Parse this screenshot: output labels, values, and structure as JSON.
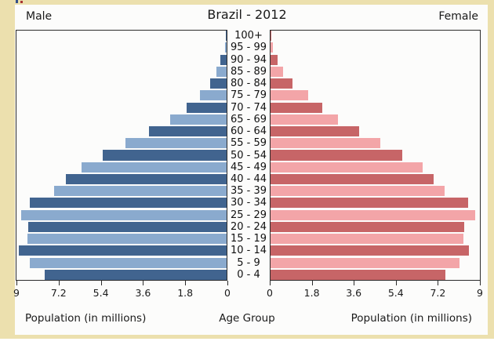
{
  "header": {
    "title": "Brazil - 2012",
    "male_label": "Male",
    "female_label": "Female"
  },
  "footer": {
    "left_caption": "Population (in millions)",
    "center_caption": "Age Group",
    "right_caption": "Population (in millions)"
  },
  "colors": {
    "male_dark": "#41648f",
    "male_light": "#8aaace",
    "female_dark": "#c76567",
    "female_light": "#f3a5a8",
    "frame_beige": "#ece0ae",
    "panel_white": "#fcfcfb",
    "axis": "#2b2b2b"
  },
  "chart_data": {
    "type": "bar",
    "subtype": "population-pyramid",
    "title": "Brazil - 2012",
    "units": "millions of people",
    "categories": [
      "0 - 4",
      "5 - 9",
      "10 - 14",
      "15 - 19",
      "20 - 24",
      "25 - 29",
      "30 - 34",
      "35 - 39",
      "40 - 44",
      "45 - 49",
      "50 - 54",
      "55 - 59",
      "60 - 64",
      "65 - 69",
      "70 - 74",
      "75 - 79",
      "80 - 84",
      "85 - 89",
      "90 - 94",
      "95 - 99",
      "100+"
    ],
    "series": [
      {
        "name": "Male",
        "values": [
          7.75,
          8.4,
          8.85,
          8.5,
          8.45,
          8.75,
          8.4,
          7.35,
          6.85,
          6.2,
          5.3,
          4.3,
          3.3,
          2.4,
          1.7,
          1.15,
          0.7,
          0.45,
          0.28,
          0.06,
          0.02
        ]
      },
      {
        "name": "Female",
        "values": [
          7.5,
          8.1,
          8.5,
          8.25,
          8.3,
          8.75,
          8.45,
          7.45,
          7.0,
          6.5,
          5.65,
          4.7,
          3.8,
          2.9,
          2.2,
          1.6,
          0.95,
          0.55,
          0.3,
          0.1,
          0.05
        ]
      }
    ],
    "male_axis": {
      "label": "Population (in millions)",
      "ticks": [
        9,
        7.2,
        5.4,
        3.6,
        1.8,
        0
      ],
      "range": [
        0,
        9
      ],
      "direction": "right-to-left"
    },
    "female_axis": {
      "label": "Population (in millions)",
      "ticks": [
        0,
        1.8,
        3.6,
        5.4,
        7.2,
        9
      ],
      "range": [
        0,
        9
      ],
      "direction": "left-to-right"
    },
    "center_axis_label": "Age Group",
    "grid": false,
    "legend_position": "top-corners",
    "bar_color_pattern": "alternating dark/light per age row, dark at 0-4"
  }
}
